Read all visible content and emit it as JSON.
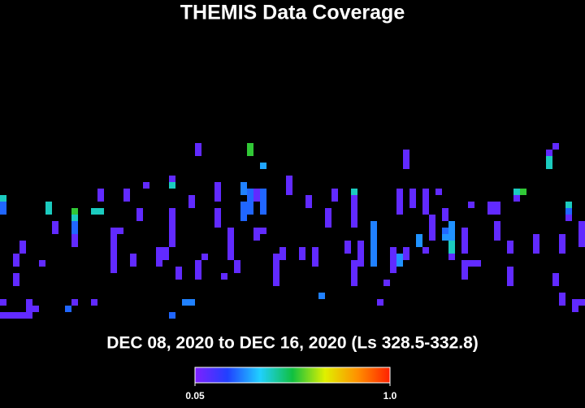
{
  "chart_data": {
    "type": "heatmap",
    "title": "THEMIS Data Coverage",
    "subtitle": "DEC 08, 2020 to DEC 16, 2020 (Ls 328.5-332.8)",
    "xlim": [
      0,
      90
    ],
    "ylim": [
      0,
      28
    ],
    "colorscale": [
      "#7f20ff",
      "#2040ff",
      "#20d0ff",
      "#10c040",
      "#e0f000",
      "#ff9000",
      "#ff2000"
    ],
    "clim": [
      0.05,
      1
    ],
    "cticks": [
      0.05,
      {
        "value": 1,
        "label": "1.0"
      }
    ],
    "cells": [
      {
        "x": 0,
        "y": 19,
        "value": 0.42
      },
      {
        "x": 0,
        "y": 18,
        "value": 0.25
      },
      {
        "x": 0,
        "y": 17,
        "value": 0.25
      },
      {
        "x": 0,
        "y": 3,
        "value": 0.1
      },
      {
        "x": 0,
        "y": 1,
        "value": 0.1
      },
      {
        "x": 1,
        "y": 1,
        "value": 0.1
      },
      {
        "x": 2,
        "y": 1,
        "value": 0.1
      },
      {
        "x": 3,
        "y": 1,
        "value": 0.1
      },
      {
        "x": 4,
        "y": 1,
        "value": 0.1
      },
      {
        "x": 2,
        "y": 10,
        "value": 0.1
      },
      {
        "x": 2,
        "y": 9,
        "value": 0.1
      },
      {
        "x": 2,
        "y": 7,
        "value": 0.1
      },
      {
        "x": 2,
        "y": 6,
        "value": 0.1
      },
      {
        "x": 3,
        "y": 12,
        "value": 0.1
      },
      {
        "x": 3,
        "y": 11,
        "value": 0.1
      },
      {
        "x": 4,
        "y": 3,
        "value": 0.1
      },
      {
        "x": 4,
        "y": 2,
        "value": 0.1
      },
      {
        "x": 5,
        "y": 2,
        "value": 0.1
      },
      {
        "x": 6,
        "y": 9,
        "value": 0.1
      },
      {
        "x": 7,
        "y": 18,
        "value": 0.42
      },
      {
        "x": 7,
        "y": 17,
        "value": 0.42
      },
      {
        "x": 8,
        "y": 15,
        "value": 0.1
      },
      {
        "x": 8,
        "y": 14,
        "value": 0.1
      },
      {
        "x": 10,
        "y": 2,
        "value": 0.25
      },
      {
        "x": 11,
        "y": 17,
        "value": 0.55
      },
      {
        "x": 11,
        "y": 16,
        "value": 0.42
      },
      {
        "x": 11,
        "y": 15,
        "value": 0.25
      },
      {
        "x": 11,
        "y": 14,
        "value": 0.25
      },
      {
        "x": 11,
        "y": 13,
        "value": 0.1
      },
      {
        "x": 11,
        "y": 12,
        "value": 0.1
      },
      {
        "x": 11,
        "y": 3,
        "value": 0.1
      },
      {
        "x": 14,
        "y": 17,
        "value": 0.42
      },
      {
        "x": 15,
        "y": 17,
        "value": 0.42
      },
      {
        "x": 14,
        "y": 3,
        "value": 0.1
      },
      {
        "x": 15,
        "y": 20,
        "value": 0.1
      },
      {
        "x": 15,
        "y": 19,
        "value": 0.1
      },
      {
        "x": 17,
        "y": 14,
        "value": 0.1
      },
      {
        "x": 17,
        "y": 13,
        "value": 0.1
      },
      {
        "x": 17,
        "y": 12,
        "value": 0.1
      },
      {
        "x": 17,
        "y": 11,
        "value": 0.1
      },
      {
        "x": 17,
        "y": 10,
        "value": 0.1
      },
      {
        "x": 17,
        "y": 9,
        "value": 0.1
      },
      {
        "x": 17,
        "y": 8,
        "value": 0.1
      },
      {
        "x": 18,
        "y": 14,
        "value": 0.1
      },
      {
        "x": 19,
        "y": 20,
        "value": 0.1
      },
      {
        "x": 19,
        "y": 19,
        "value": 0.1
      },
      {
        "x": 20,
        "y": 10,
        "value": 0.1
      },
      {
        "x": 20,
        "y": 9,
        "value": 0.1
      },
      {
        "x": 21,
        "y": 17,
        "value": 0.1
      },
      {
        "x": 21,
        "y": 16,
        "value": 0.1
      },
      {
        "x": 22,
        "y": 21,
        "value": 0.1
      },
      {
        "x": 24,
        "y": 11,
        "value": 0.1
      },
      {
        "x": 24,
        "y": 10,
        "value": 0.1
      },
      {
        "x": 24,
        "y": 9,
        "value": 0.1
      },
      {
        "x": 25,
        "y": 11,
        "value": 0.1
      },
      {
        "x": 25,
        "y": 10,
        "value": 0.1
      },
      {
        "x": 26,
        "y": 22,
        "value": 0.1
      },
      {
        "x": 26,
        "y": 21,
        "value": 0.42
      },
      {
        "x": 26,
        "y": 17,
        "value": 0.1
      },
      {
        "x": 26,
        "y": 16,
        "value": 0.1
      },
      {
        "x": 26,
        "y": 15,
        "value": 0.1
      },
      {
        "x": 26,
        "y": 14,
        "value": 0.1
      },
      {
        "x": 26,
        "y": 13,
        "value": 0.1
      },
      {
        "x": 26,
        "y": 12,
        "value": 0.1
      },
      {
        "x": 26,
        "y": 1,
        "value": 0.25
      },
      {
        "x": 27,
        "y": 8,
        "value": 0.1
      },
      {
        "x": 27,
        "y": 7,
        "value": 0.1
      },
      {
        "x": 28,
        "y": 3,
        "value": 0.28
      },
      {
        "x": 29,
        "y": 3,
        "value": 0.28
      },
      {
        "x": 29,
        "y": 19,
        "value": 0.1
      },
      {
        "x": 29,
        "y": 18,
        "value": 0.1
      },
      {
        "x": 30,
        "y": 27,
        "value": 0.1
      },
      {
        "x": 30,
        "y": 26,
        "value": 0.1
      },
      {
        "x": 30,
        "y": 9,
        "value": 0.1
      },
      {
        "x": 30,
        "y": 8,
        "value": 0.1
      },
      {
        "x": 30,
        "y": 7,
        "value": 0.1
      },
      {
        "x": 31,
        "y": 10,
        "value": 0.1
      },
      {
        "x": 33,
        "y": 17,
        "value": 0.1
      },
      {
        "x": 33,
        "y": 16,
        "value": 0.1
      },
      {
        "x": 33,
        "y": 15,
        "value": 0.1
      },
      {
        "x": 33,
        "y": 21,
        "value": 0.1
      },
      {
        "x": 33,
        "y": 20,
        "value": 0.1
      },
      {
        "x": 33,
        "y": 19,
        "value": 0.1
      },
      {
        "x": 34,
        "y": 7,
        "value": 0.1
      },
      {
        "x": 35,
        "y": 14,
        "value": 0.1
      },
      {
        "x": 35,
        "y": 13,
        "value": 0.1
      },
      {
        "x": 35,
        "y": 12,
        "value": 0.1
      },
      {
        "x": 35,
        "y": 11,
        "value": 0.1
      },
      {
        "x": 35,
        "y": 10,
        "value": 0.1
      },
      {
        "x": 36,
        "y": 9,
        "value": 0.1
      },
      {
        "x": 36,
        "y": 8,
        "value": 0.1
      },
      {
        "x": 37,
        "y": 21,
        "value": 0.28
      },
      {
        "x": 37,
        "y": 20,
        "value": 0.28
      },
      {
        "x": 37,
        "y": 18,
        "value": 0.25
      },
      {
        "x": 37,
        "y": 17,
        "value": 0.25
      },
      {
        "x": 37,
        "y": 16,
        "value": 0.25
      },
      {
        "x": 38,
        "y": 27,
        "value": 0.55
      },
      {
        "x": 38,
        "y": 26,
        "value": 0.55
      },
      {
        "x": 38,
        "y": 20,
        "value": 0.25
      },
      {
        "x": 38,
        "y": 19,
        "value": 0.25
      },
      {
        "x": 38,
        "y": 18,
        "value": 0.25
      },
      {
        "x": 38,
        "y": 17,
        "value": 0.25
      },
      {
        "x": 39,
        "y": 20,
        "value": 0.1
      },
      {
        "x": 39,
        "y": 19,
        "value": 0.1
      },
      {
        "x": 39,
        "y": 14,
        "value": 0.1
      },
      {
        "x": 39,
        "y": 13,
        "value": 0.1
      },
      {
        "x": 40,
        "y": 24,
        "value": 0.32
      },
      {
        "x": 40,
        "y": 20,
        "value": 0.25
      },
      {
        "x": 40,
        "y": 19,
        "value": 0.25
      },
      {
        "x": 40,
        "y": 18,
        "value": 0.25
      },
      {
        "x": 40,
        "y": 17,
        "value": 0.25
      },
      {
        "x": 40,
        "y": 14,
        "value": 0.1
      },
      {
        "x": 42,
        "y": 10,
        "value": 0.1
      },
      {
        "x": 42,
        "y": 9,
        "value": 0.1
      },
      {
        "x": 42,
        "y": 8,
        "value": 0.1
      },
      {
        "x": 42,
        "y": 7,
        "value": 0.1
      },
      {
        "x": 42,
        "y": 6,
        "value": 0.1
      },
      {
        "x": 43,
        "y": 11,
        "value": 0.1
      },
      {
        "x": 43,
        "y": 10,
        "value": 0.1
      },
      {
        "x": 44,
        "y": 22,
        "value": 0.1
      },
      {
        "x": 44,
        "y": 21,
        "value": 0.1
      },
      {
        "x": 44,
        "y": 20,
        "value": 0.1
      },
      {
        "x": 46,
        "y": 11,
        "value": 0.1
      },
      {
        "x": 46,
        "y": 10,
        "value": 0.1
      },
      {
        "x": 47,
        "y": 19,
        "value": 0.1
      },
      {
        "x": 47,
        "y": 18,
        "value": 0.1
      },
      {
        "x": 48,
        "y": 11,
        "value": 0.1
      },
      {
        "x": 48,
        "y": 10,
        "value": 0.1
      },
      {
        "x": 48,
        "y": 9,
        "value": 0.1
      },
      {
        "x": 49,
        "y": 4,
        "value": 0.28
      },
      {
        "x": 50,
        "y": 17,
        "value": 0.1
      },
      {
        "x": 50,
        "y": 16,
        "value": 0.1
      },
      {
        "x": 50,
        "y": 15,
        "value": 0.1
      },
      {
        "x": 51,
        "y": 20,
        "value": 0.1
      },
      {
        "x": 51,
        "y": 19,
        "value": 0.1
      },
      {
        "x": 53,
        "y": 12,
        "value": 0.1
      },
      {
        "x": 53,
        "y": 11,
        "value": 0.1
      },
      {
        "x": 54,
        "y": 20,
        "value": 0.42
      },
      {
        "x": 54,
        "y": 19,
        "value": 0.1
      },
      {
        "x": 54,
        "y": 18,
        "value": 0.1
      },
      {
        "x": 54,
        "y": 17,
        "value": 0.1
      },
      {
        "x": 54,
        "y": 16,
        "value": 0.1
      },
      {
        "x": 54,
        "y": 15,
        "value": 0.1
      },
      {
        "x": 54,
        "y": 9,
        "value": 0.1
      },
      {
        "x": 54,
        "y": 8,
        "value": 0.1
      },
      {
        "x": 54,
        "y": 7,
        "value": 0.1
      },
      {
        "x": 54,
        "y": 6,
        "value": 0.1
      },
      {
        "x": 55,
        "y": 12,
        "value": 0.1
      },
      {
        "x": 55,
        "y": 11,
        "value": 0.1
      },
      {
        "x": 55,
        "y": 10,
        "value": 0.1
      },
      {
        "x": 55,
        "y": 9,
        "value": 0.1
      },
      {
        "x": 57,
        "y": 15,
        "value": 0.28
      },
      {
        "x": 57,
        "y": 14,
        "value": 0.28
      },
      {
        "x": 57,
        "y": 13,
        "value": 0.28
      },
      {
        "x": 57,
        "y": 12,
        "value": 0.28
      },
      {
        "x": 57,
        "y": 11,
        "value": 0.28
      },
      {
        "x": 57,
        "y": 10,
        "value": 0.28
      },
      {
        "x": 57,
        "y": 9,
        "value": 0.28
      },
      {
        "x": 58,
        "y": 3,
        "value": 0.1
      },
      {
        "x": 59,
        "y": 6,
        "value": 0.1
      },
      {
        "x": 60,
        "y": 11,
        "value": 0.1
      },
      {
        "x": 60,
        "y": 10,
        "value": 0.1
      },
      {
        "x": 60,
        "y": 9,
        "value": 0.1
      },
      {
        "x": 60,
        "y": 8,
        "value": 0.1
      },
      {
        "x": 61,
        "y": 20,
        "value": 0.1
      },
      {
        "x": 61,
        "y": 19,
        "value": 0.1
      },
      {
        "x": 61,
        "y": 18,
        "value": 0.1
      },
      {
        "x": 61,
        "y": 17,
        "value": 0.1
      },
      {
        "x": 61,
        "y": 10,
        "value": 0.3
      },
      {
        "x": 61,
        "y": 9,
        "value": 0.3
      },
      {
        "x": 62,
        "y": 26,
        "value": 0.1
      },
      {
        "x": 62,
        "y": 25,
        "value": 0.1
      },
      {
        "x": 62,
        "y": 24,
        "value": 0.1
      },
      {
        "x": 62,
        "y": 11,
        "value": 0.1
      },
      {
        "x": 62,
        "y": 10,
        "value": 0.1
      },
      {
        "x": 63,
        "y": 20,
        "value": 0.1
      },
      {
        "x": 63,
        "y": 19,
        "value": 0.1
      },
      {
        "x": 63,
        "y": 18,
        "value": 0.1
      },
      {
        "x": 64,
        "y": 13,
        "value": 0.3
      },
      {
        "x": 64,
        "y": 12,
        "value": 0.3
      },
      {
        "x": 65,
        "y": 20,
        "value": 0.1
      },
      {
        "x": 65,
        "y": 19,
        "value": 0.1
      },
      {
        "x": 65,
        "y": 18,
        "value": 0.1
      },
      {
        "x": 65,
        "y": 17,
        "value": 0.1
      },
      {
        "x": 65,
        "y": 11,
        "value": 0.1
      },
      {
        "x": 66,
        "y": 16,
        "value": 0.1
      },
      {
        "x": 66,
        "y": 15,
        "value": 0.1
      },
      {
        "x": 66,
        "y": 14,
        "value": 0.1
      },
      {
        "x": 66,
        "y": 13,
        "value": 0.1
      },
      {
        "x": 67,
        "y": 20,
        "value": 0.1
      },
      {
        "x": 68,
        "y": 17,
        "value": 0.1
      },
      {
        "x": 68,
        "y": 16,
        "value": 0.1
      },
      {
        "x": 68,
        "y": 14,
        "value": 0.25
      },
      {
        "x": 68,
        "y": 13,
        "value": 0.3
      },
      {
        "x": 69,
        "y": 15,
        "value": 0.3
      },
      {
        "x": 69,
        "y": 14,
        "value": 0.3
      },
      {
        "x": 69,
        "y": 13,
        "value": 0.3
      },
      {
        "x": 69,
        "y": 12,
        "value": 0.42
      },
      {
        "x": 69,
        "y": 11,
        "value": 0.42
      },
      {
        "x": 69,
        "y": 10,
        "value": 0.1
      },
      {
        "x": 71,
        "y": 14,
        "value": 0.1
      },
      {
        "x": 71,
        "y": 13,
        "value": 0.1
      },
      {
        "x": 71,
        "y": 12,
        "value": 0.1
      },
      {
        "x": 71,
        "y": 11,
        "value": 0.1
      },
      {
        "x": 71,
        "y": 9,
        "value": 0.1
      },
      {
        "x": 71,
        "y": 8,
        "value": 0.1
      },
      {
        "x": 71,
        "y": 7,
        "value": 0.1
      },
      {
        "x": 72,
        "y": 18,
        "value": 0.1
      },
      {
        "x": 72,
        "y": 9,
        "value": 0.1
      },
      {
        "x": 73,
        "y": 9,
        "value": 0.1
      },
      {
        "x": 75,
        "y": 18,
        "value": 0.1
      },
      {
        "x": 75,
        "y": 17,
        "value": 0.1
      },
      {
        "x": 76,
        "y": 18,
        "value": 0.1
      },
      {
        "x": 76,
        "y": 17,
        "value": 0.1
      },
      {
        "x": 76,
        "y": 15,
        "value": 0.1
      },
      {
        "x": 76,
        "y": 14,
        "value": 0.1
      },
      {
        "x": 76,
        "y": 13,
        "value": 0.1
      },
      {
        "x": 78,
        "y": 12,
        "value": 0.1
      },
      {
        "x": 78,
        "y": 11,
        "value": 0.1
      },
      {
        "x": 78,
        "y": 8,
        "value": 0.1
      },
      {
        "x": 78,
        "y": 7,
        "value": 0.1
      },
      {
        "x": 78,
        "y": 6,
        "value": 0.1
      },
      {
        "x": 79,
        "y": 20,
        "value": 0.42
      },
      {
        "x": 79,
        "y": 19,
        "value": 0.1
      },
      {
        "x": 80,
        "y": 20,
        "value": 0.55
      },
      {
        "x": 82,
        "y": 13,
        "value": 0.1
      },
      {
        "x": 82,
        "y": 12,
        "value": 0.1
      },
      {
        "x": 82,
        "y": 11,
        "value": 0.1
      },
      {
        "x": 84,
        "y": 26,
        "value": 0.1
      },
      {
        "x": 84,
        "y": 25,
        "value": 0.42
      },
      {
        "x": 84,
        "y": 24,
        "value": 0.42
      },
      {
        "x": 85,
        "y": 27,
        "value": 0.1
      },
      {
        "x": 85,
        "y": 7,
        "value": 0.1
      },
      {
        "x": 85,
        "y": 6,
        "value": 0.1
      },
      {
        "x": 86,
        "y": 13,
        "value": 0.1
      },
      {
        "x": 86,
        "y": 12,
        "value": 0.1
      },
      {
        "x": 86,
        "y": 11,
        "value": 0.1
      },
      {
        "x": 86,
        "y": 4,
        "value": 0.1
      },
      {
        "x": 86,
        "y": 3,
        "value": 0.1
      },
      {
        "x": 87,
        "y": 18,
        "value": 0.42
      },
      {
        "x": 87,
        "y": 17,
        "value": 0.25
      },
      {
        "x": 87,
        "y": 16,
        "value": 0.1
      },
      {
        "x": 88,
        "y": 3,
        "value": 0.1
      },
      {
        "x": 88,
        "y": 2,
        "value": 0.1
      },
      {
        "x": 89,
        "y": 15,
        "value": 0.1
      },
      {
        "x": 89,
        "y": 14,
        "value": 0.1
      },
      {
        "x": 89,
        "y": 13,
        "value": 0.1
      },
      {
        "x": 89,
        "y": 12,
        "value": 0.1
      },
      {
        "x": 89,
        "y": 3,
        "value": 0.1
      }
    ]
  }
}
